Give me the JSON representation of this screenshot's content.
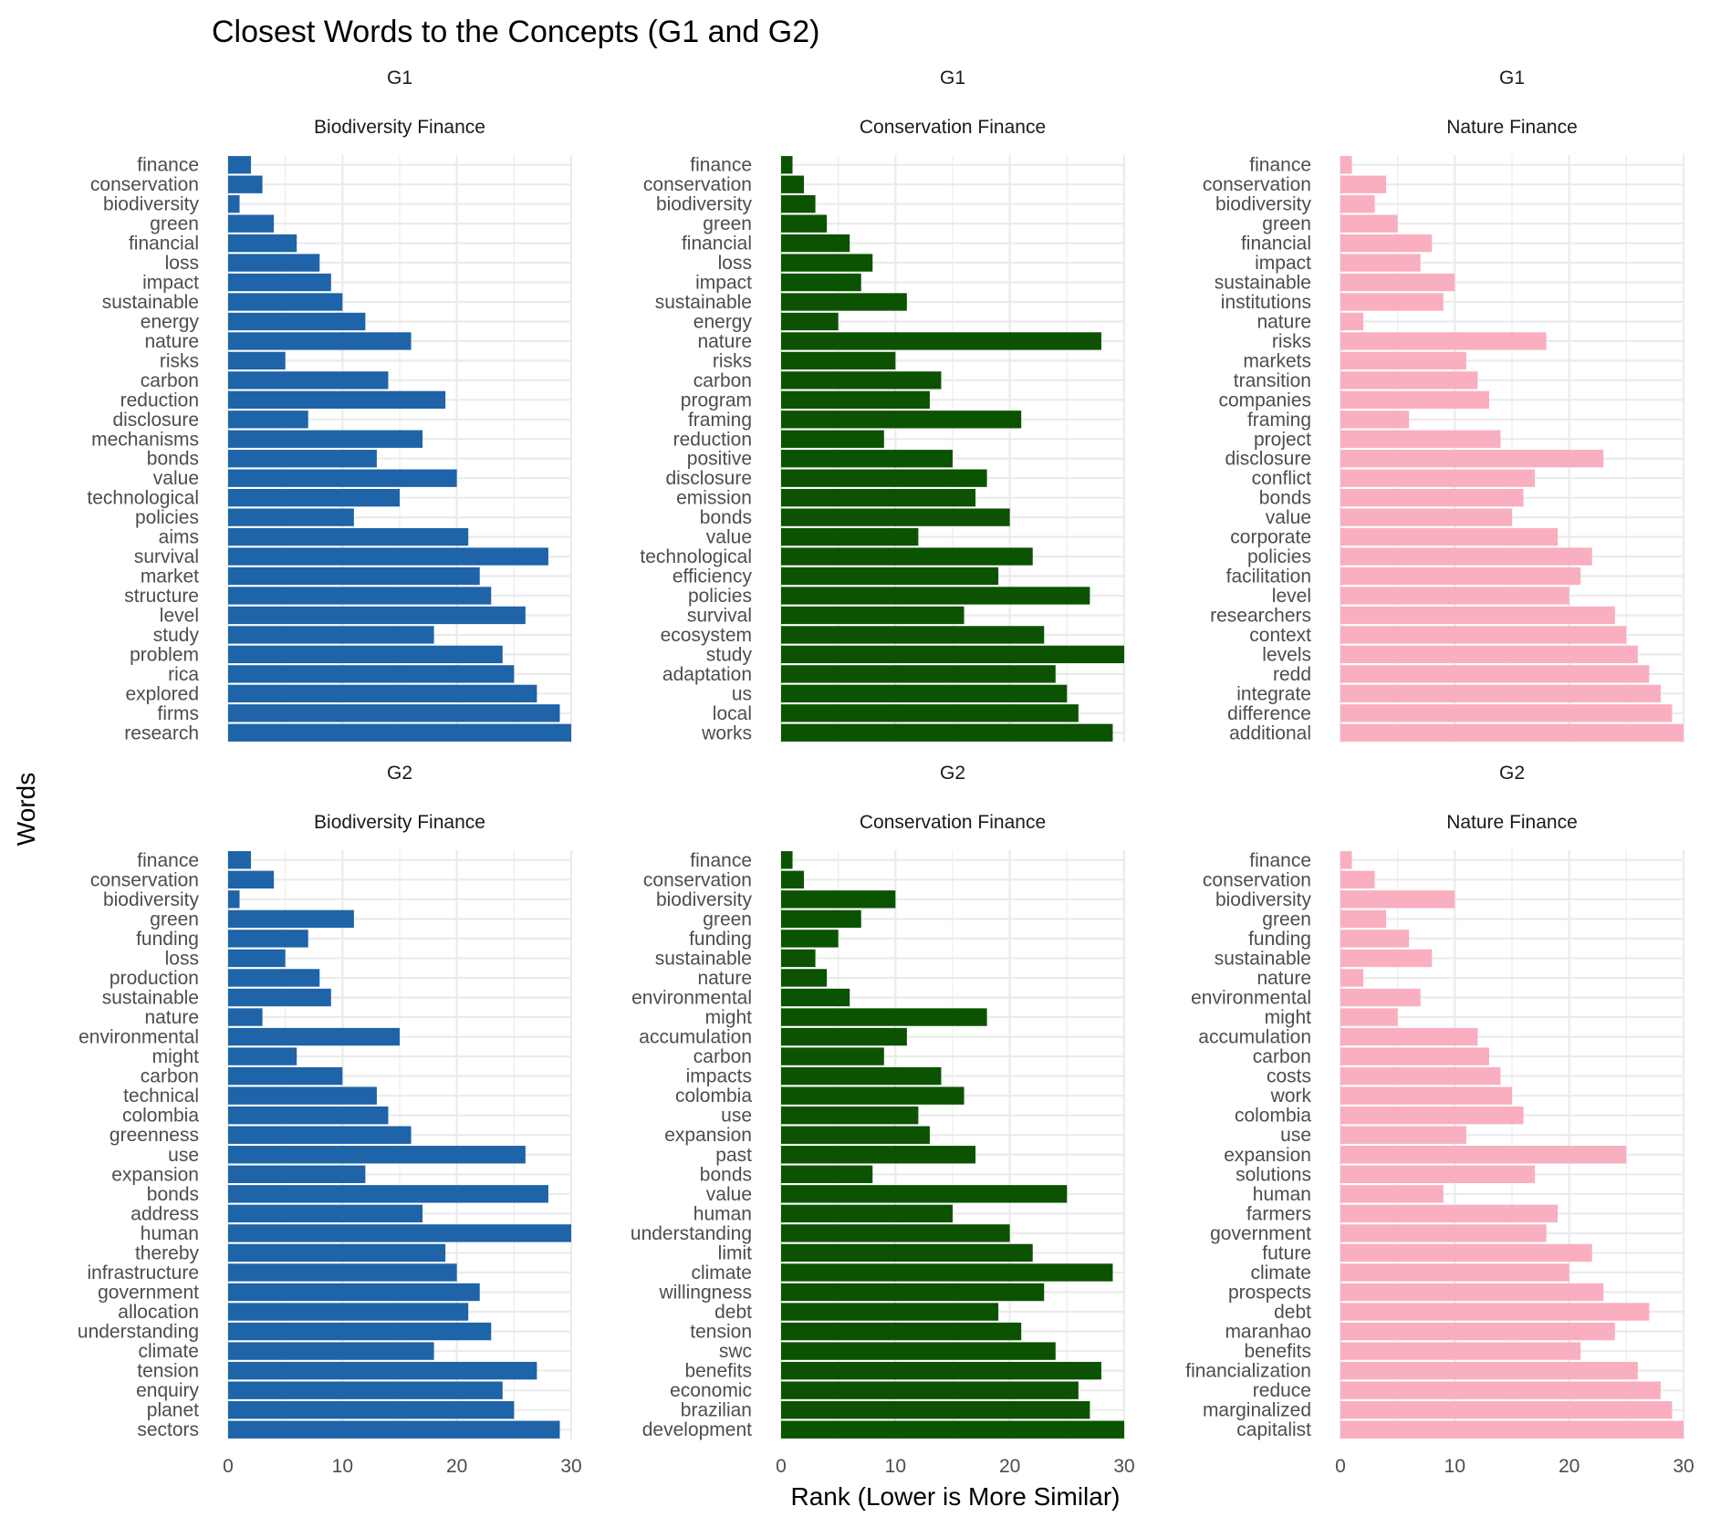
{
  "chart_data": {
    "type": "bar",
    "orientation": "horizontal",
    "title": "Closest Words to the Concepts (G1 and G2)",
    "xlabel": "Rank (Lower is More Similar)",
    "ylabel": "Words",
    "xlim": [
      0,
      30
    ],
    "xticks": [
      "0",
      "10",
      "20",
      "30"
    ],
    "grid": true,
    "legend": "none",
    "colors": {
      "Biodiversity Finance": "#1f63a8",
      "Conservation Finance": "#0b5300",
      "Nature Finance": "#f9afc0"
    },
    "panels": [
      {
        "group": "G1",
        "concept": "Biodiversity Finance",
        "words": [
          "finance",
          "conservation",
          "biodiversity",
          "green",
          "financial",
          "loss",
          "impact",
          "sustainable",
          "energy",
          "nature",
          "risks",
          "carbon",
          "reduction",
          "disclosure",
          "mechanisms",
          "bonds",
          "value",
          "technological",
          "policies",
          "aims",
          "survival",
          "market",
          "structure",
          "level",
          "study",
          "problem",
          "rica",
          "explored",
          "firms",
          "research"
        ],
        "values": [
          2,
          3,
          1,
          4,
          6,
          8,
          9,
          10,
          12,
          16,
          5,
          14,
          19,
          7,
          17,
          13,
          20,
          15,
          11,
          21,
          28,
          22,
          23,
          26,
          18,
          24,
          25,
          27,
          29,
          30
        ]
      },
      {
        "group": "G1",
        "concept": "Conservation Finance",
        "words": [
          "finance",
          "conservation",
          "biodiversity",
          "green",
          "financial",
          "loss",
          "impact",
          "sustainable",
          "energy",
          "nature",
          "risks",
          "carbon",
          "program",
          "framing",
          "reduction",
          "positive",
          "disclosure",
          "emission",
          "bonds",
          "value",
          "technological",
          "efficiency",
          "policies",
          "survival",
          "ecosystem",
          "study",
          "adaptation",
          "us",
          "local",
          "works"
        ],
        "values": [
          1,
          2,
          3,
          4,
          6,
          8,
          7,
          11,
          5,
          28,
          10,
          14,
          13,
          21,
          9,
          15,
          18,
          17,
          20,
          12,
          22,
          19,
          27,
          16,
          23,
          30,
          24,
          25,
          26,
          29
        ]
      },
      {
        "group": "G1",
        "concept": "Nature Finance",
        "words": [
          "finance",
          "conservation",
          "biodiversity",
          "green",
          "financial",
          "impact",
          "sustainable",
          "institutions",
          "nature",
          "risks",
          "markets",
          "transition",
          "companies",
          "framing",
          "project",
          "disclosure",
          "conflict",
          "bonds",
          "value",
          "corporate",
          "policies",
          "facilitation",
          "level",
          "researchers",
          "context",
          "levels",
          "redd",
          "integrate",
          "difference",
          "additional"
        ],
        "values": [
          1,
          4,
          3,
          5,
          8,
          7,
          10,
          9,
          2,
          18,
          11,
          12,
          13,
          6,
          14,
          23,
          17,
          16,
          15,
          19,
          22,
          21,
          20,
          24,
          25,
          26,
          27,
          28,
          29,
          30
        ]
      },
      {
        "group": "G2",
        "concept": "Biodiversity Finance",
        "words": [
          "finance",
          "conservation",
          "biodiversity",
          "green",
          "funding",
          "loss",
          "production",
          "sustainable",
          "nature",
          "environmental",
          "might",
          "carbon",
          "technical",
          "colombia",
          "greenness",
          "use",
          "expansion",
          "bonds",
          "address",
          "human",
          "thereby",
          "infrastructure",
          "government",
          "allocation",
          "understanding",
          "climate",
          "tension",
          "enquiry",
          "planet",
          "sectors"
        ],
        "values": [
          2,
          4,
          1,
          11,
          7,
          5,
          8,
          9,
          3,
          15,
          6,
          10,
          13,
          14,
          16,
          26,
          12,
          28,
          17,
          30,
          19,
          20,
          22,
          21,
          23,
          18,
          27,
          24,
          25,
          29
        ]
      },
      {
        "group": "G2",
        "concept": "Conservation Finance",
        "words": [
          "finance",
          "conservation",
          "biodiversity",
          "green",
          "funding",
          "sustainable",
          "nature",
          "environmental",
          "might",
          "accumulation",
          "carbon",
          "impacts",
          "colombia",
          "use",
          "expansion",
          "past",
          "bonds",
          "value",
          "human",
          "understanding",
          "limit",
          "climate",
          "willingness",
          "debt",
          "tension",
          "swc",
          "benefits",
          "economic",
          "brazilian",
          "development"
        ],
        "values": [
          1,
          2,
          10,
          7,
          5,
          3,
          4,
          6,
          18,
          11,
          9,
          14,
          16,
          12,
          13,
          17,
          8,
          25,
          15,
          20,
          22,
          29,
          23,
          19,
          21,
          24,
          28,
          26,
          27,
          30
        ]
      },
      {
        "group": "G2",
        "concept": "Nature Finance",
        "words": [
          "finance",
          "conservation",
          "biodiversity",
          "green",
          "funding",
          "sustainable",
          "nature",
          "environmental",
          "might",
          "accumulation",
          "carbon",
          "costs",
          "work",
          "colombia",
          "use",
          "expansion",
          "solutions",
          "human",
          "farmers",
          "government",
          "future",
          "climate",
          "prospects",
          "debt",
          "maranhao",
          "benefits",
          "financialization",
          "reduce",
          "marginalized",
          "capitalist"
        ],
        "values": [
          1,
          3,
          10,
          4,
          6,
          8,
          2,
          7,
          5,
          12,
          13,
          14,
          15,
          16,
          11,
          25,
          17,
          9,
          19,
          18,
          22,
          20,
          23,
          27,
          24,
          21,
          26,
          28,
          29,
          30
        ]
      }
    ]
  }
}
